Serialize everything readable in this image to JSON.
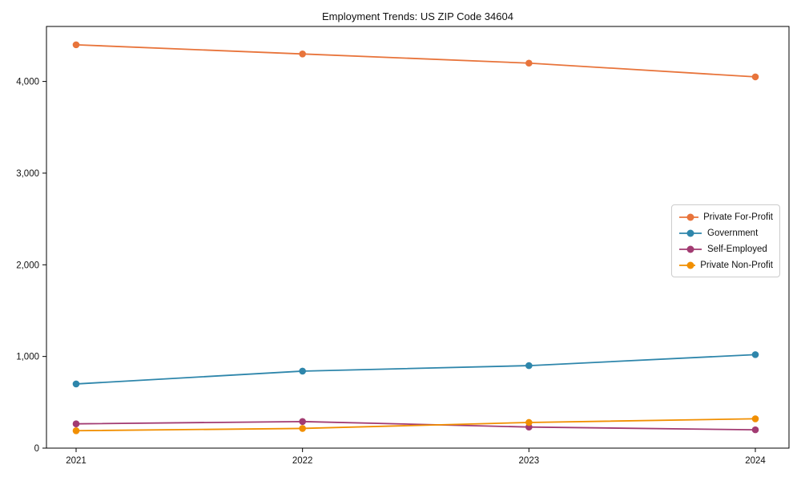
{
  "chart_data": {
    "type": "line",
    "title": "Employment Trends: US ZIP Code 34604",
    "xlabel": "",
    "ylabel": "",
    "categories": [
      "2021",
      "2022",
      "2023",
      "2024"
    ],
    "series": [
      {
        "name": "Private For-Profit",
        "color": "#E8743B",
        "values": [
          4400,
          4300,
          4200,
          4050
        ]
      },
      {
        "name": "Government",
        "color": "#2E86AB",
        "values": [
          700,
          840,
          900,
          1020
        ]
      },
      {
        "name": "Self-Employed",
        "color": "#A23B72",
        "values": [
          265,
          290,
          230,
          200
        ]
      },
      {
        "name": "Private Non-Profit",
        "color": "#F18F01",
        "values": [
          190,
          215,
          280,
          320
        ]
      }
    ],
    "ylim": [
      0,
      4600
    ],
    "yticks": [
      0,
      1000,
      2000,
      3000,
      4000
    ],
    "ytick_labels": [
      "0",
      "1,000",
      "2,000",
      "3,000",
      "4,000"
    ],
    "grid": false,
    "legend_position": "right-middle",
    "marker": "circle",
    "axis_color": "#000000"
  }
}
